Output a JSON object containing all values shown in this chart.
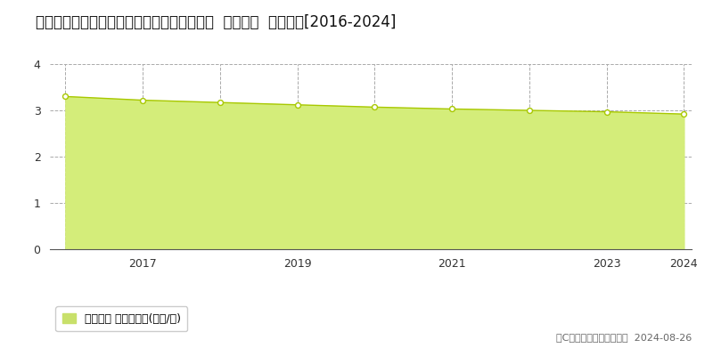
{
  "title": "新潟県上越市大字有間川字家浦８０９番１外  地価公示  地価推移[2016-2024]",
  "years": [
    2016,
    2017,
    2018,
    2019,
    2020,
    2021,
    2022,
    2023,
    2024
  ],
  "values": [
    3.3,
    3.22,
    3.17,
    3.12,
    3.07,
    3.03,
    3.0,
    2.97,
    2.92
  ],
  "ylim": [
    0,
    4
  ],
  "yticks": [
    0,
    1,
    2,
    3,
    4
  ],
  "fill_color": "#d4ed7a",
  "line_color": "#a8c800",
  "marker_facecolor": "#ffffff",
  "marker_edgecolor": "#a8c800",
  "grid_color_x": "#aaaaaa",
  "grid_color_y": "#aaaaaa",
  "bg_color": "#ffffff",
  "legend_label": "地価公示 平均坪単価(万円/坪)",
  "legend_color": "#c8e06a",
  "copyright_text": "（C）土地価格ドットコム  2024-08-26",
  "xtick_labels": [
    2017,
    2019,
    2021,
    2023,
    2024
  ],
  "all_xticks": [
    2016,
    2017,
    2018,
    2019,
    2020,
    2021,
    2022,
    2023,
    2024
  ],
  "title_fontsize": 12,
  "tick_fontsize": 9,
  "legend_fontsize": 9,
  "copyright_fontsize": 8
}
